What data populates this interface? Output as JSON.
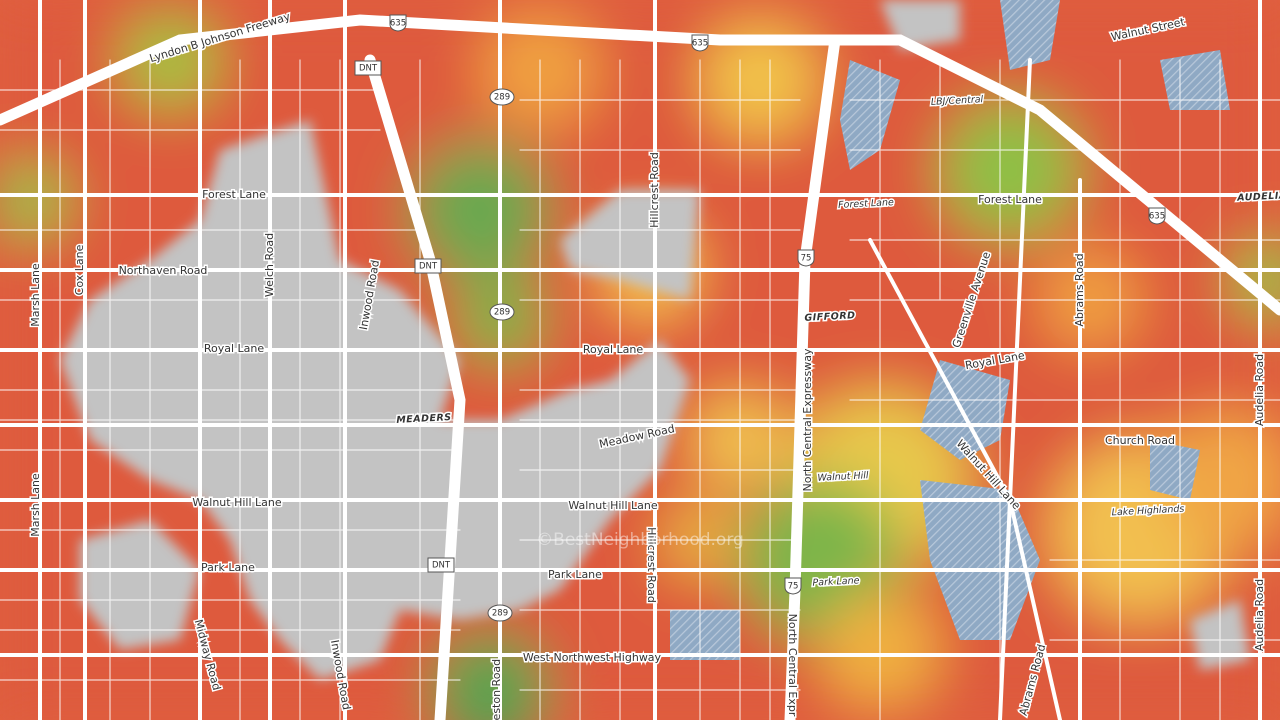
{
  "map": {
    "roads": [
      "Lyndon B Johnson Freeway",
      "Walnut Street",
      "Forest Lane",
      "Forest Lane",
      "Northaven Road",
      "Cox Lane",
      "Welch Road",
      "Inwood Road",
      "Inwood Road",
      "Hillcrest Road",
      "Hillcrest Road",
      "Greenville Avenue",
      "Abrams Road",
      "Abrams Road",
      "Royal Lane",
      "Royal Lane",
      "Royal Lane",
      "Audelia Road",
      "Audelia Road",
      "Marsh Lane",
      "Marsh Lane",
      "Meadow Road",
      "North Central Expressway",
      "North Central Expr",
      "Church Road",
      "Walnut Hill Lane",
      "Walnut Hill Lane",
      "Walnut Hill Lane",
      "Park Lane",
      "Park Lane",
      "Midway Road",
      "West Northwest Highway",
      "Preston Road"
    ],
    "places": [
      "LBJ/Central",
      "Forest Lane",
      "AUDELIA",
      "GIFFORD",
      "MEADERS",
      "Walnut Hill",
      "Lake Highlands",
      "Park Lane"
    ],
    "shields": [
      "635",
      "635",
      "635",
      "DNT",
      "DNT",
      "DNT",
      "289",
      "289",
      "289",
      "75",
      "75"
    ],
    "watermark": "©BestNeighborhood.org"
  }
}
